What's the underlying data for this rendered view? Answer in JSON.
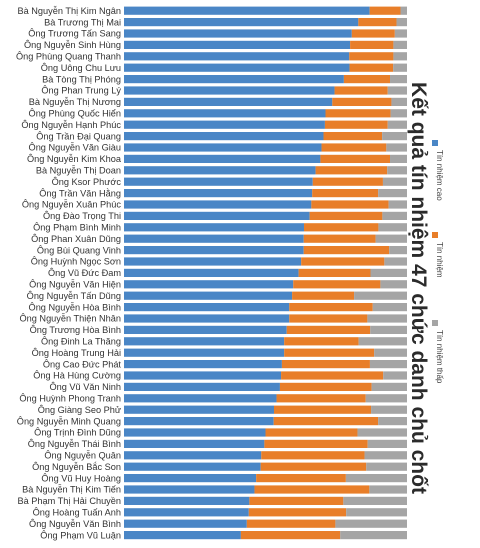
{
  "chart_data": {
    "type": "bar",
    "orientation": "horizontal",
    "stacked": true,
    "title": "Kết quả tín nhiệm 47 chức danh chủ chốt",
    "xlabel": "",
    "ylabel": "",
    "xlim": [
      0,
      100
    ],
    "grid": false,
    "legend_position": "right",
    "categories": [
      "Bà Nguyễn Thị Kim Ngân",
      "Bà Trương Thị Mai",
      "Ông Trương Tấn Sang",
      "Ông Nguyễn Sinh Hùng",
      "Ông Phùng Quang Thanh",
      "Ông Uông Chu Lưu",
      "Bà Tòng Thị Phóng",
      "Ông Phan Trung Lý",
      "Bà Nguyễn Thị Nương",
      "Ông Phùng Quốc Hiển",
      "Ông Nguyễn Hạnh Phúc",
      "Ông Trần Đại Quang",
      "Ông Nguyễn Văn Giàu",
      "Ông Nguyễn Kim Khoa",
      "Bà Nguyễn Thị Doan",
      "Ông Ksor Phước",
      "Ông Trần Văn Hằng",
      "Ông Nguyễn Xuân Phúc",
      "Ông Đào Trọng Thi",
      "Ông Phạm Bình Minh",
      "Ông Phan Xuân Dũng",
      "Ông Bùi Quang Vinh",
      "Ông Huỳnh Ngọc Sơn",
      "Ông Vũ Đức Đam",
      "Ông Nguyễn Văn Hiện",
      "Ông Nguyễn Tấn Dũng",
      "Ông Nguyễn Hòa Bình",
      "Ông Nguyễn Thiện Nhân",
      "Ông Trương Hòa Bình",
      "Ông Đinh La Thăng",
      "Ông Hoàng Trung Hải",
      "Ông Cao Đức Phát",
      "Ông Hà Hùng Cường",
      "Ông Vũ Văn Ninh",
      "Ông Huỳnh Phong Tranh",
      "Ông Giàng Seo Phử",
      "Ông Nguyễn Minh Quang",
      "Ông Trịnh Đình Dũng",
      "Ông Nguyễn Thái Bình",
      "Ông Nguyễn Quân",
      "Ông Nguyễn Bắc Son",
      "Ông Vũ Huy Hoàng",
      "Bà Nguyễn Thị Kim Tiến",
      "Bà Phạm Thị Hải Chuyền",
      "Ông Hoàng Tuấn Anh",
      "Ông Nguyễn Văn Bình",
      "Ông Phạm Vũ Luận"
    ],
    "series": [
      {
        "name": "Tín nhiệm cao",
        "color": "#4a86c6",
        "values": [
          86.8,
          82.8,
          80.5,
          79.9,
          79.6,
          79.7,
          77.7,
          74.4,
          73.6,
          71.2,
          71.0,
          70.5,
          69.8,
          69.4,
          67.7,
          66.7,
          66.5,
          66.2,
          65.6,
          63.6,
          63.5,
          63.5,
          62.6,
          61.7,
          59.8,
          59.4,
          58.4,
          58.4,
          57.5,
          56.6,
          56.6,
          55.8,
          55.5,
          55.1,
          53.9,
          53.0,
          52.9,
          50.0,
          49.6,
          48.5,
          48.3,
          46.7,
          46.1,
          44.3,
          44.1,
          43.4,
          41.3
        ]
      },
      {
        "name": "Tín nhiệm",
        "color": "#e87e29",
        "values": [
          10.9,
          13.5,
          15.2,
          15.3,
          15.6,
          15.4,
          16.3,
          18.8,
          20.9,
          23.0,
          22.2,
          20.7,
          22.9,
          24.6,
          25.3,
          24.8,
          23.3,
          27.3,
          25.7,
          26.3,
          25.4,
          30.2,
          29.4,
          25.4,
          30.8,
          21.9,
          29.5,
          27.6,
          29.5,
          26.3,
          31.8,
          31.1,
          36.1,
          32.4,
          31.5,
          34.3,
          36.9,
          32.5,
          36.5,
          36.5,
          37.3,
          31.7,
          40.6,
          33.2,
          34.4,
          31.3,
          35.1
        ]
      },
      {
        "name": "Tín nhiệm thấp",
        "color": "#a5a5a5",
        "values": [
          2.3,
          3.7,
          4.3,
          4.8,
          4.8,
          4.9,
          6.0,
          6.8,
          5.5,
          5.8,
          6.8,
          8.8,
          7.3,
          6.0,
          7.0,
          8.5,
          10.2,
          6.5,
          8.7,
          10.1,
          11.1,
          6.3,
          8.0,
          12.9,
          9.4,
          18.7,
          12.1,
          14.0,
          13.0,
          17.1,
          11.6,
          13.1,
          8.4,
          12.5,
          14.6,
          12.7,
          10.2,
          17.5,
          13.9,
          15.0,
          14.4,
          21.6,
          13.3,
          22.5,
          21.5,
          25.3,
          23.6
        ]
      }
    ]
  }
}
